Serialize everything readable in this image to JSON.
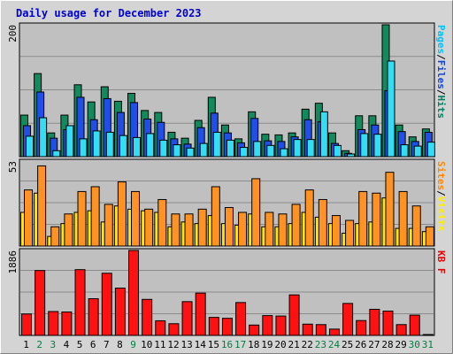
{
  "chart_data": {
    "type": "bar",
    "title": "Daily usage for December 2023",
    "categories": [
      "1",
      "2",
      "3",
      "4",
      "5",
      "6",
      "7",
      "8",
      "9",
      "10",
      "11",
      "12",
      "13",
      "14",
      "15",
      "16",
      "17",
      "18",
      "19",
      "20",
      "21",
      "22",
      "23",
      "24",
      "25",
      "26",
      "27",
      "28",
      "29",
      "30",
      "31"
    ],
    "weekend_days": [
      "2",
      "3",
      "9",
      "16",
      "17",
      "23",
      "24",
      "30",
      "31"
    ],
    "panels": [
      {
        "id": "top",
        "ymax_label": "200",
        "ylim": [
          0,
          200
        ],
        "legend": [
          {
            "text": "Pages",
            "color": "#00c0ff"
          },
          {
            "text": "/",
            "color": "#000000"
          },
          {
            "text": "Files",
            "color": "#1144dd"
          },
          {
            "text": "/",
            "color": "#000000"
          },
          {
            "text": "Hits",
            "color": "#008060"
          }
        ],
        "series": [
          {
            "name": "Hits",
            "color": "#138a5e",
            "values": [
              63,
              126,
              36,
              63,
              109,
              83,
              106,
              84,
              96,
              70,
              67,
              37,
              28,
              55,
              90,
              48,
              27,
              68,
              34,
              33,
              36,
              72,
              81,
              36,
              9,
              62,
              62,
              200,
              48,
              30,
              42
            ]
          },
          {
            "name": "Files",
            "color": "#1f4fe8",
            "values": [
              47,
              98,
              28,
              41,
              90,
              56,
              88,
              67,
              82,
              57,
              52,
              27,
              19,
              44,
              66,
              36,
              21,
              58,
              24,
              23,
              30,
              56,
              53,
              20,
              5,
              41,
              48,
              100,
              38,
              23,
              37
            ]
          },
          {
            "name": "Pages",
            "color": "#33ddf3",
            "values": [
              31,
              59,
              9,
              47,
              27,
              39,
              37,
              32,
              29,
              35,
              25,
              18,
              13,
              20,
              37,
              25,
              14,
              23,
              17,
              12,
              26,
              26,
              68,
              17,
              4,
              35,
              34,
              145,
              18,
              16,
              22
            ]
          }
        ]
      },
      {
        "id": "middle",
        "ymax_label": "53",
        "ylim": [
          0,
          53
        ],
        "legend": [
          {
            "text": "Sites",
            "color": "#ff8800"
          },
          {
            "text": "/",
            "color": "#000000"
          },
          {
            "text": "Visits",
            "color": "#ffee00"
          }
        ],
        "series": [
          {
            "name": "Visits",
            "color": "#ffe600",
            "values": [
              21,
              33,
              6,
              14,
              21,
              22,
              15,
              25,
              23,
              22,
              21,
              12,
              15,
              14,
              19,
              14,
              13,
              20,
              12,
              12,
              14,
              21,
              18,
              14,
              8,
              14,
              15,
              30,
              11,
              11,
              9
            ]
          },
          {
            "name": "Sites",
            "color": "#ff9222",
            "values": [
              35,
              50,
              12,
              20,
              34,
              37,
              26,
              40,
              34,
              23,
              29,
              20,
              20,
              23,
              37,
              24,
              21,
              42,
              21,
              20,
              26,
              35,
              29,
              19,
              16,
              34,
              33,
              46,
              34,
              25,
              12
            ]
          }
        ]
      },
      {
        "id": "bottom",
        "ymax_label": "1886",
        "ylim": [
          0,
          1886
        ],
        "legend": [
          {
            "text": "KB F",
            "color": "#ee0000"
          }
        ],
        "series": [
          {
            "name": "KB F",
            "color": "#ff1111",
            "values": [
              475,
              1440,
              530,
              520,
              1460,
              815,
              1380,
              1050,
              1886,
              800,
              325,
              260,
              750,
              940,
              400,
              380,
              730,
              230,
              440,
              430,
              900,
              250,
              240,
              140,
              710,
              330,
              580,
              540,
              240,
              450,
              1
            ]
          }
        ]
      }
    ]
  }
}
